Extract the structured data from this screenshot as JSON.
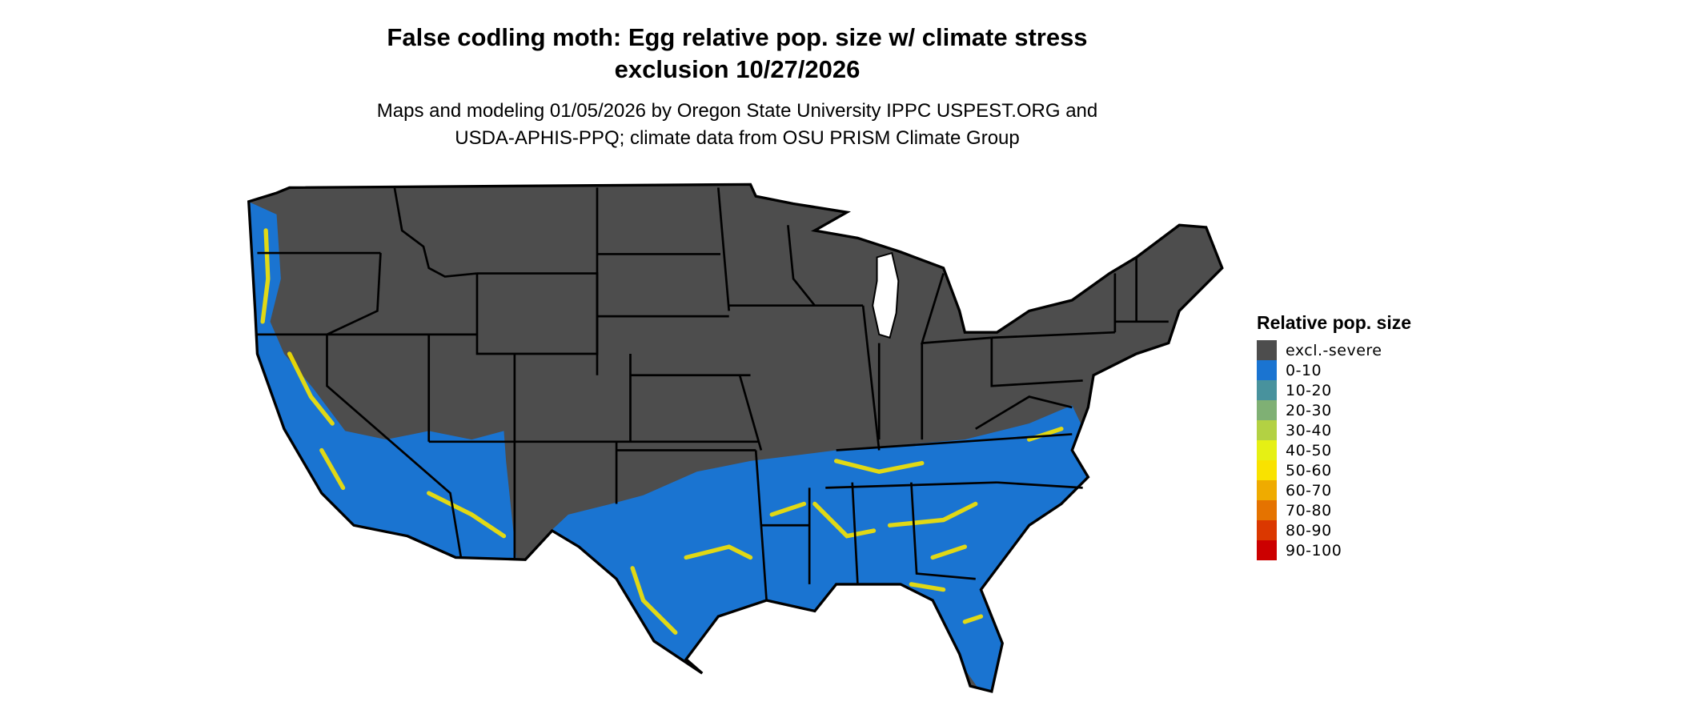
{
  "title": {
    "line1": "False codling moth: Egg relative pop. size w/ climate stress",
    "line2": "exclusion 10/27/2026"
  },
  "subtitle": {
    "line1": "Maps and modeling 01/05/2026 by Oregon State University IPPC USPEST.ORG and",
    "line2": "USDA-APHIS-PPQ; climate data from OSU PRISM Climate Group"
  },
  "map": {
    "region": "Contiguous United States",
    "colors": {
      "excluded": "#4d4d4d",
      "low": "#1a74d1",
      "mid": "#f7e400",
      "water": "#ffffff",
      "border": "#000000"
    }
  },
  "legend": {
    "title": "Relative pop. size",
    "items": [
      {
        "label": "excl.-severe",
        "color": "#4d4d4d"
      },
      {
        "label": "0-10",
        "color": "#1a74d1"
      },
      {
        "label": "10-20",
        "color": "#48929d"
      },
      {
        "label": "20-30",
        "color": "#7fb074"
      },
      {
        "label": "30-40",
        "color": "#b3d143"
      },
      {
        "label": "40-50",
        "color": "#e6f014"
      },
      {
        "label": "50-60",
        "color": "#f9e200"
      },
      {
        "label": "60-70",
        "color": "#efab00"
      },
      {
        "label": "70-80",
        "color": "#e57300"
      },
      {
        "label": "80-90",
        "color": "#db3800"
      },
      {
        "label": "90-100",
        "color": "#cc0000"
      }
    ]
  }
}
